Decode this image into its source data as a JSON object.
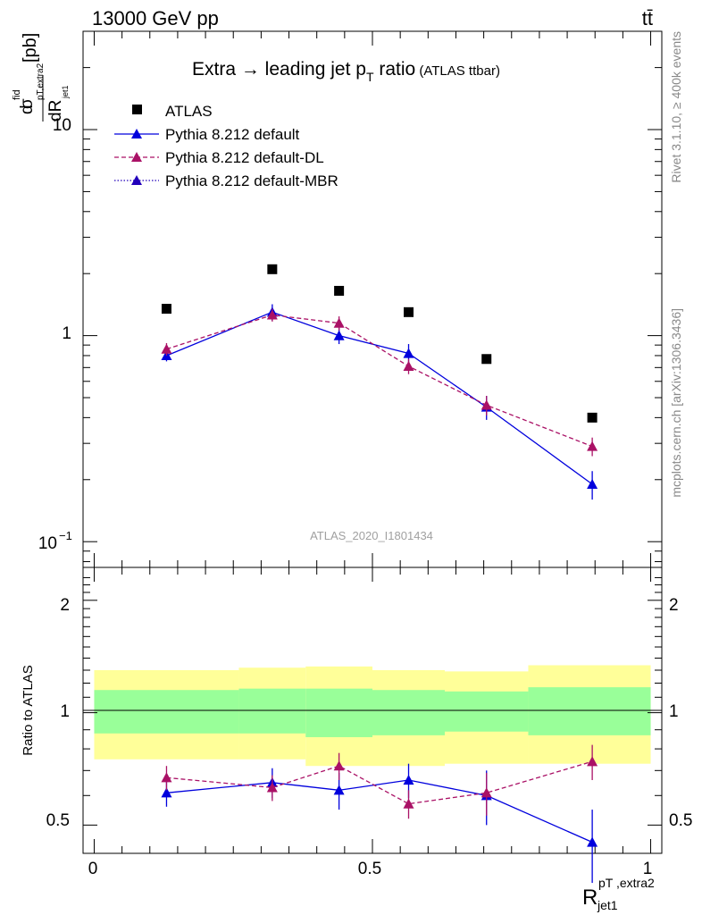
{
  "header": {
    "left": "13000 GeV pp",
    "right": "tt̄"
  },
  "title": {
    "main": "Extra → leading jet p",
    "main_sub": "T",
    "main_tail": " ratio",
    "small": " (ATLAS ttbar)"
  },
  "side": {
    "rivet": "Rivet 3.1.10, ≥ 400k events",
    "mcplots": "mcplots.cern.ch [arXiv:1306.3436]"
  },
  "analysis": "ATLAS_2020_I1801434",
  "legend": [
    {
      "label": "ATLAS",
      "marker": "square",
      "line": "none",
      "color": "#000000"
    },
    {
      "label": "Pythia 8.212 default",
      "marker": "triangle",
      "line": "solid",
      "color": "#0000dd"
    },
    {
      "label": "Pythia 8.212 default-DL",
      "marker": "triangle",
      "line": "dashed",
      "color": "#aa1166"
    },
    {
      "label": "Pythia 8.212 default-MBR",
      "marker": "triangle",
      "line": "dotted",
      "color": "#2200bb"
    }
  ],
  "ylabel_main": "[pb]",
  "ylabel_ratio": "Ratio to ATLAS",
  "xlabel": {
    "base": "R",
    "sup": "pT ,extra2",
    "sub": "jet1"
  },
  "main_ticks": [
    "10",
    "1",
    "10",
    "−1"
  ],
  "ratio_ticks": [
    "2",
    "1",
    "0.5"
  ],
  "x_ticks": [
    "0",
    "0.5",
    "1"
  ],
  "chart_data": {
    "type": "line",
    "x_range": [
      -0.02,
      1.02
    ],
    "main": {
      "yscale": "log",
      "ylim": [
        0.075,
        30
      ],
      "series": [
        {
          "name": "ATLAS",
          "style": "data",
          "color": "#000000",
          "x": [
            0.13,
            0.32,
            0.44,
            0.565,
            0.705,
            0.895
          ],
          "y": [
            1.35,
            2.1,
            1.65,
            1.3,
            0.77,
            0.4
          ]
        },
        {
          "name": "Pythia 8.212 default",
          "style": "solid",
          "color": "#0000dd",
          "x": [
            0.13,
            0.32,
            0.44,
            0.565,
            0.705,
            0.895
          ],
          "y": [
            0.8,
            1.3,
            1.0,
            0.82,
            0.45,
            0.19
          ],
          "err": [
            0.05,
            0.12,
            0.09,
            0.09,
            0.06,
            0.03
          ]
        },
        {
          "name": "Pythia 8.212 default-DL",
          "style": "dashed",
          "color": "#aa1166",
          "x": [
            0.13,
            0.32,
            0.44,
            0.565,
            0.705,
            0.895
          ],
          "y": [
            0.86,
            1.26,
            1.15,
            0.71,
            0.46,
            0.29
          ],
          "err": [
            0.06,
            0.09,
            0.09,
            0.06,
            0.05,
            0.03
          ]
        }
      ]
    },
    "ratio": {
      "yscale": "log",
      "ylim": [
        0.42,
        2.45
      ],
      "bands": [
        {
          "x0": 0.0,
          "x1": 0.26,
          "yellow": [
            0.75,
            1.3
          ],
          "green": [
            0.88,
            1.15
          ]
        },
        {
          "x0": 0.26,
          "x1": 0.38,
          "yellow": [
            0.75,
            1.32
          ],
          "green": [
            0.88,
            1.16
          ]
        },
        {
          "x0": 0.38,
          "x1": 0.5,
          "yellow": [
            0.72,
            1.33
          ],
          "green": [
            0.86,
            1.16
          ]
        },
        {
          "x0": 0.5,
          "x1": 0.63,
          "yellow": [
            0.72,
            1.3
          ],
          "green": [
            0.87,
            1.15
          ]
        },
        {
          "x0": 0.63,
          "x1": 0.78,
          "yellow": [
            0.73,
            1.29
          ],
          "green": [
            0.89,
            1.14
          ]
        },
        {
          "x0": 0.78,
          "x1": 1.0,
          "yellow": [
            0.73,
            1.34
          ],
          "green": [
            0.87,
            1.17
          ]
        }
      ],
      "series": [
        {
          "name": "Pythia 8.212 default",
          "style": "solid",
          "color": "#0000dd",
          "x": [
            0.13,
            0.32,
            0.44,
            0.565,
            0.705,
            0.895
          ],
          "y": [
            0.61,
            0.65,
            0.62,
            0.66,
            0.6,
            0.45
          ],
          "err": [
            0.05,
            0.06,
            0.07,
            0.07,
            0.1,
            0.1
          ]
        },
        {
          "name": "Pythia 8.212 default-DL",
          "style": "dashed",
          "color": "#aa1166",
          "x": [
            0.13,
            0.32,
            0.44,
            0.565,
            0.705,
            0.895
          ],
          "y": [
            0.67,
            0.63,
            0.72,
            0.57,
            0.61,
            0.74
          ],
          "err": [
            0.05,
            0.05,
            0.06,
            0.05,
            0.08,
            0.08
          ]
        }
      ]
    }
  }
}
